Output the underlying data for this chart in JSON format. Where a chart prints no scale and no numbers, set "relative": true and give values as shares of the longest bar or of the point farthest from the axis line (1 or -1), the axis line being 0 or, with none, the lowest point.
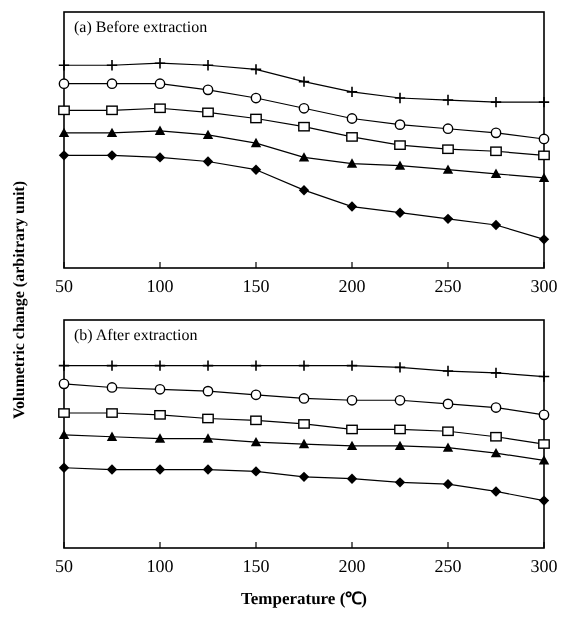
{
  "chart_data": [
    {
      "type": "line",
      "title": "(a) Before extraction",
      "ylabel": "Volumetric change (arbitrary unit)",
      "relative": true,
      "tick_labels": "x",
      "xlim": [
        50,
        300
      ],
      "xticks": [
        50,
        100,
        150,
        200,
        250,
        300
      ],
      "x": [
        50,
        75,
        100,
        125,
        150,
        175,
        200,
        225,
        250,
        275,
        300
      ],
      "line_style": "solid",
      "series": [
        {
          "color": "#000000",
          "marker": "cross",
          "values": [
            0.99,
            0.99,
            1,
            0.99,
            0.97,
            0.91,
            0.86,
            0.83,
            0.82,
            0.81,
            0.81
          ]
        },
        {
          "color": "#000000",
          "marker": "circle",
          "values": [
            0.9,
            0.9,
            0.9,
            0.87,
            0.83,
            0.78,
            0.73,
            0.7,
            0.68,
            0.66,
            0.63
          ]
        },
        {
          "color": "#000000",
          "marker": "square",
          "values": [
            0.77,
            0.77,
            0.78,
            0.76,
            0.73,
            0.69,
            0.64,
            0.6,
            0.58,
            0.57,
            0.55
          ]
        },
        {
          "color": "#000000",
          "marker": "triangle",
          "values": [
            0.66,
            0.66,
            0.67,
            0.65,
            0.61,
            0.54,
            0.51,
            0.5,
            0.48,
            0.46,
            0.44
          ]
        },
        {
          "color": "#000000",
          "marker": "diamond",
          "values": [
            0.55,
            0.55,
            0.54,
            0.52,
            0.48,
            0.38,
            0.3,
            0.27,
            0.24,
            0.21,
            0.14
          ]
        }
      ]
    },
    {
      "type": "line",
      "title": "(b) After extraction",
      "xlabel": "Temperature (℃)",
      "relative": true,
      "tick_labels": "x",
      "xlim": [
        50,
        300
      ],
      "xticks": [
        50,
        100,
        150,
        200,
        250,
        300
      ],
      "x": [
        50,
        75,
        100,
        125,
        150,
        175,
        200,
        225,
        250,
        275,
        300
      ],
      "line_style": "solid",
      "series": [
        {
          "color": "#000000",
          "marker": "cross",
          "values": [
            1,
            1,
            1,
            1,
            1,
            1,
            1,
            0.99,
            0.97,
            0.96,
            0.94
          ]
        },
        {
          "color": "#000000",
          "marker": "circle",
          "values": [
            0.9,
            0.88,
            0.87,
            0.86,
            0.84,
            0.82,
            0.81,
            0.81,
            0.79,
            0.77,
            0.73
          ]
        },
        {
          "color": "#000000",
          "marker": "square",
          "values": [
            0.74,
            0.74,
            0.73,
            0.71,
            0.7,
            0.68,
            0.65,
            0.65,
            0.64,
            0.61,
            0.57
          ]
        },
        {
          "color": "#000000",
          "marker": "triangle",
          "values": [
            0.62,
            0.61,
            0.6,
            0.6,
            0.58,
            0.57,
            0.56,
            0.56,
            0.55,
            0.52,
            0.48
          ]
        },
        {
          "color": "#000000",
          "marker": "diamond",
          "values": [
            0.44,
            0.43,
            0.43,
            0.43,
            0.42,
            0.39,
            0.38,
            0.36,
            0.35,
            0.31,
            0.26
          ]
        }
      ]
    }
  ]
}
